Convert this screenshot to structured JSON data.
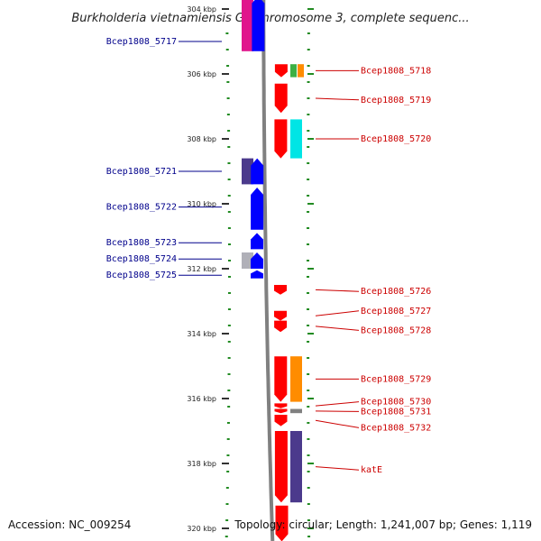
{
  "title": "Burkholderia vietnamiensis G4 chromosome 3, complete sequenc...",
  "footer": {
    "accession": "Accession: NC_009254",
    "summary": "Topology: circular; Length: 1,241,007 bp; Genes: 1,119"
  },
  "chart_data": {
    "type": "genome-map",
    "axis": {
      "unit": "kbp",
      "range": [
        304,
        320
      ],
      "ticks": [
        {
          "kbp": 304,
          "label": "304 kbp"
        },
        {
          "kbp": 306,
          "label": "306 kbp"
        },
        {
          "kbp": 308,
          "label": "308 kbp"
        },
        {
          "kbp": 310,
          "label": "310 kbp"
        },
        {
          "kbp": 312,
          "label": "312 kbp"
        },
        {
          "kbp": 314,
          "label": "314 kbp"
        },
        {
          "kbp": 316,
          "label": "316 kbp"
        },
        {
          "kbp": 318,
          "label": "318 kbp"
        },
        {
          "kbp": 320,
          "label": "320 kbp"
        }
      ]
    },
    "colors": {
      "reverse_gene": "#0000ff",
      "forward_gene": "#ff0000",
      "reverse_label": "#00008b",
      "forward_label": "#cc0000",
      "backbone": "#808080",
      "grid_dot": "#228b22"
    },
    "genes": [
      {
        "label": "Bcep1808_5717",
        "strand": "reverse",
        "start": 303.6,
        "end": 305.3,
        "label_kbp": 305.0
      },
      {
        "label": "Bcep1808_5718",
        "strand": "forward",
        "start": 305.7,
        "end": 306.1,
        "label_kbp": 305.9
      },
      {
        "label": "Bcep1808_5719",
        "strand": "forward",
        "start": 306.3,
        "end": 307.2,
        "label_kbp": 306.8
      },
      {
        "label": "Bcep1808_5720",
        "strand": "forward",
        "start": 307.4,
        "end": 308.6,
        "label_kbp": 308.0
      },
      {
        "label": "Bcep1808_5721",
        "strand": "reverse",
        "start": 308.6,
        "end": 309.4,
        "label_kbp": 309.0
      },
      {
        "label": "Bcep1808_5722",
        "strand": "reverse",
        "start": 309.5,
        "end": 310.8,
        "label_kbp": 310.1
      },
      {
        "label": "Bcep1808_5723",
        "strand": "reverse",
        "start": 310.9,
        "end": 311.4,
        "label_kbp": 311.2
      },
      {
        "label": "Bcep1808_5724",
        "strand": "reverse",
        "start": 311.5,
        "end": 312.0,
        "label_kbp": 311.7
      },
      {
        "label": "Bcep1808_5725",
        "strand": "reverse",
        "start": 312.05,
        "end": 312.3,
        "label_kbp": 312.2
      },
      {
        "label": "Bcep1808_5726",
        "strand": "forward",
        "start": 312.5,
        "end": 312.8,
        "label_kbp": 312.7
      },
      {
        "label": "Bcep1808_5727",
        "strand": "forward",
        "start": 313.3,
        "end": 313.6,
        "label_kbp": 313.3
      },
      {
        "label": "Bcep1808_5728",
        "strand": "forward",
        "start": 313.6,
        "end": 313.95,
        "label_kbp": 313.9
      },
      {
        "label": "Bcep1808_5729",
        "strand": "forward",
        "start": 314.7,
        "end": 316.1,
        "label_kbp": 315.4
      },
      {
        "label": "Bcep1808_5730",
        "strand": "forward",
        "start": 316.15,
        "end": 316.3,
        "label_kbp": 316.1
      },
      {
        "label": "Bcep1808_5731",
        "strand": "forward",
        "start": 316.32,
        "end": 316.45,
        "label_kbp": 316.4
      },
      {
        "label": "Bcep1808_5732",
        "strand": "forward",
        "start": 316.5,
        "end": 316.85,
        "label_kbp": 316.9
      },
      {
        "label": "katE",
        "strand": "forward",
        "start": 317.0,
        "end": 319.2,
        "label_kbp": 318.2
      },
      {
        "label": "",
        "strand": "forward",
        "start": 319.3,
        "end": 320.4,
        "label_kbp": 320.0
      }
    ],
    "orthologs": [
      {
        "gene": "Bcep1808_5717",
        "color": "#e0158c",
        "start": 303.6,
        "end": 305.3
      },
      {
        "gene": "Bcep1808_5718",
        "color": "#3cb043",
        "start": 305.7,
        "end": 306.1
      },
      {
        "gene": "Bcep1808_5718",
        "color": "#ff8c00",
        "start": 305.7,
        "end": 306.1
      },
      {
        "gene": "Bcep1808_5720",
        "color": "#00e5e5",
        "start": 307.4,
        "end": 308.6
      },
      {
        "gene": "Bcep1808_5721",
        "color": "#4b3a8c",
        "start": 308.6,
        "end": 309.4
      },
      {
        "gene": "Bcep1808_5724",
        "color": "#b0b0b8",
        "start": 311.5,
        "end": 312.0
      },
      {
        "gene": "Bcep1808_5729",
        "color": "#ff8c00",
        "start": 314.7,
        "end": 316.1
      },
      {
        "gene": "Bcep1808_5731",
        "color": "#808080",
        "start": 316.32,
        "end": 316.45
      },
      {
        "gene": "katE",
        "color": "#4b3a8c",
        "start": 317.0,
        "end": 319.2
      }
    ]
  }
}
